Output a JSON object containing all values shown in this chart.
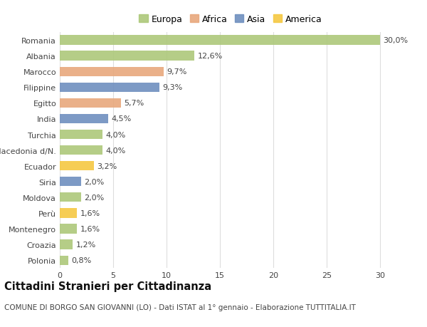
{
  "countries": [
    "Romania",
    "Albania",
    "Marocco",
    "Filippine",
    "Egitto",
    "India",
    "Turchia",
    "Macedonia d/N.",
    "Ecuador",
    "Siria",
    "Moldova",
    "Perù",
    "Montenegro",
    "Croazia",
    "Polonia"
  ],
  "values": [
    30.0,
    12.6,
    9.7,
    9.3,
    5.7,
    4.5,
    4.0,
    4.0,
    3.2,
    2.0,
    2.0,
    1.6,
    1.6,
    1.2,
    0.8
  ],
  "labels": [
    "30,0%",
    "12,6%",
    "9,7%",
    "9,3%",
    "5,7%",
    "4,5%",
    "4,0%",
    "4,0%",
    "3,2%",
    "2,0%",
    "2,0%",
    "1,6%",
    "1,6%",
    "1,2%",
    "0,8%"
  ],
  "continents": [
    "Europa",
    "Europa",
    "Africa",
    "Asia",
    "Africa",
    "Asia",
    "Europa",
    "Europa",
    "America",
    "Asia",
    "Europa",
    "America",
    "Europa",
    "Europa",
    "Europa"
  ],
  "continent_colors": {
    "Europa": "#adc87a",
    "Africa": "#e8a87c",
    "Asia": "#6f8fbf",
    "America": "#f5c842"
  },
  "xlim": [
    0,
    32
  ],
  "xticks": [
    0,
    5,
    10,
    15,
    20,
    25,
    30
  ],
  "title": "Cittadini Stranieri per Cittadinanza",
  "subtitle": "COMUNE DI BORGO SAN GIOVANNI (LO) - Dati ISTAT al 1° gennaio - Elaborazione TUTTITALIA.IT",
  "background_color": "#ffffff",
  "grid_color": "#dddddd",
  "bar_height": 0.6,
  "label_fontsize": 8.0,
  "tick_fontsize": 8.0,
  "title_fontsize": 10.5,
  "subtitle_fontsize": 7.5
}
